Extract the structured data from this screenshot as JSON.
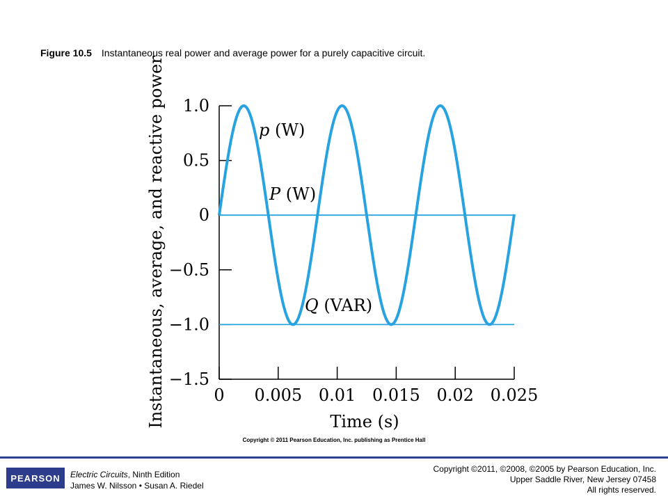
{
  "caption": {
    "figure_number": "Figure 10.5",
    "text": "Instantaneous real power and average power for a purely capacitive circuit."
  },
  "chart_data": {
    "type": "line",
    "xlabel": "Time (s)",
    "ylabel": "Instantaneous, average, and reactive power",
    "xlim": [
      0,
      0.025
    ],
    "ylim": [
      -1.5,
      1.0
    ],
    "x_ticks": [
      {
        "value": 0,
        "label": "0"
      },
      {
        "value": 0.005,
        "label": "0.005"
      },
      {
        "value": 0.01,
        "label": "0.01"
      },
      {
        "value": 0.015,
        "label": "0.015"
      },
      {
        "value": 0.02,
        "label": "0.02"
      },
      {
        "value": 0.025,
        "label": "0.025"
      }
    ],
    "y_ticks": [
      {
        "value": 1.0,
        "label": "1.0"
      },
      {
        "value": 0.5,
        "label": "0.5"
      },
      {
        "value": 0,
        "label": "0"
      },
      {
        "value": -0.5,
        "label": "−0.5"
      },
      {
        "value": -1.0,
        "label": "−1.0"
      },
      {
        "value": -1.5,
        "label": "−1.5"
      }
    ],
    "series": [
      {
        "name_italic": "p",
        "name_rest": " (W)",
        "kind": "sine",
        "amplitude": 1.0,
        "period": 0.00833,
        "x_end": 0.025,
        "color": "#29a3e0"
      },
      {
        "name_italic": "P",
        "name_rest": " (W)",
        "kind": "constant",
        "value": 0,
        "color": "#29a3e0"
      },
      {
        "name_italic": "Q",
        "name_rest": " (VAR)",
        "kind": "constant",
        "value": -1.0,
        "color": "#29a3e0"
      }
    ],
    "grid": false
  },
  "figure_copyright": "Copyright © 2011 Pearson Education, Inc. publishing as Prentice Hall",
  "footer": {
    "logo_text": "PEARSON",
    "book_title": "Electric Circuits",
    "book_edition": ", Ninth Edition",
    "authors": "James W. Nilsson • Susan A. Riedel",
    "copyright_line1": "Copyright ©2011, ©2008, ©2005 by Pearson Education, Inc.",
    "copyright_line2": "Upper Saddle River, New Jersey 07458",
    "copyright_line3": "All rights reserved.",
    "line_color": "#2f3f8f",
    "logo_color": "#2e3c8c"
  }
}
